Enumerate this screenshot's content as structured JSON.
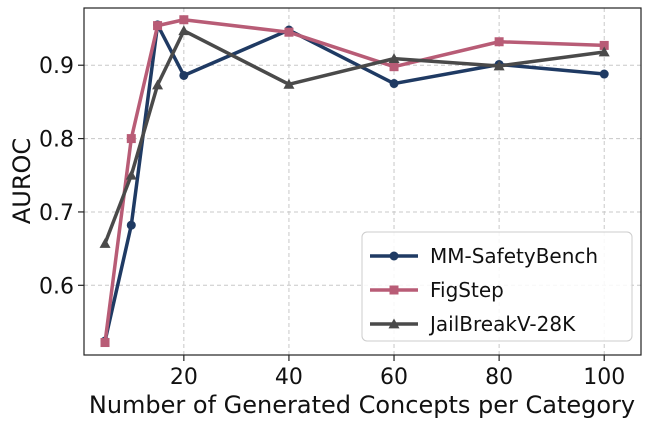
{
  "chart_data": {
    "type": "line",
    "title": "",
    "xlabel": "Number of Generated Concepts per Category",
    "ylabel": "AUROC",
    "x": [
      5,
      10,
      15,
      20,
      40,
      60,
      80,
      100
    ],
    "xlim": [
      1,
      107
    ],
    "ylim": [
      0.505,
      0.978
    ],
    "xticks": [
      20,
      40,
      60,
      80,
      100
    ],
    "xtick_labels": [
      "20",
      "40",
      "60",
      "80",
      "100"
    ],
    "yticks": [
      0.6,
      0.7,
      0.8,
      0.9
    ],
    "ytick_labels": [
      "0.6",
      "0.7",
      "0.8",
      "0.9"
    ],
    "grid": true,
    "legend_position": "lower-right",
    "series": [
      {
        "name": "MM-SafetyBench",
        "color": "#1f3a63",
        "marker": "circle",
        "values": [
          0.524,
          0.682,
          0.955,
          0.886,
          0.948,
          0.875,
          0.901,
          0.888
        ]
      },
      {
        "name": "FigStep",
        "color": "#b85c76",
        "marker": "square",
        "values": [
          0.522,
          0.8,
          0.954,
          0.962,
          0.945,
          0.898,
          0.932,
          0.927
        ]
      },
      {
        "name": "JailBreakV-28K",
        "color": "#4a4a4a",
        "marker": "triangle",
        "values": [
          0.657,
          0.75,
          0.873,
          0.947,
          0.874,
          0.909,
          0.899,
          0.918
        ]
      }
    ]
  }
}
